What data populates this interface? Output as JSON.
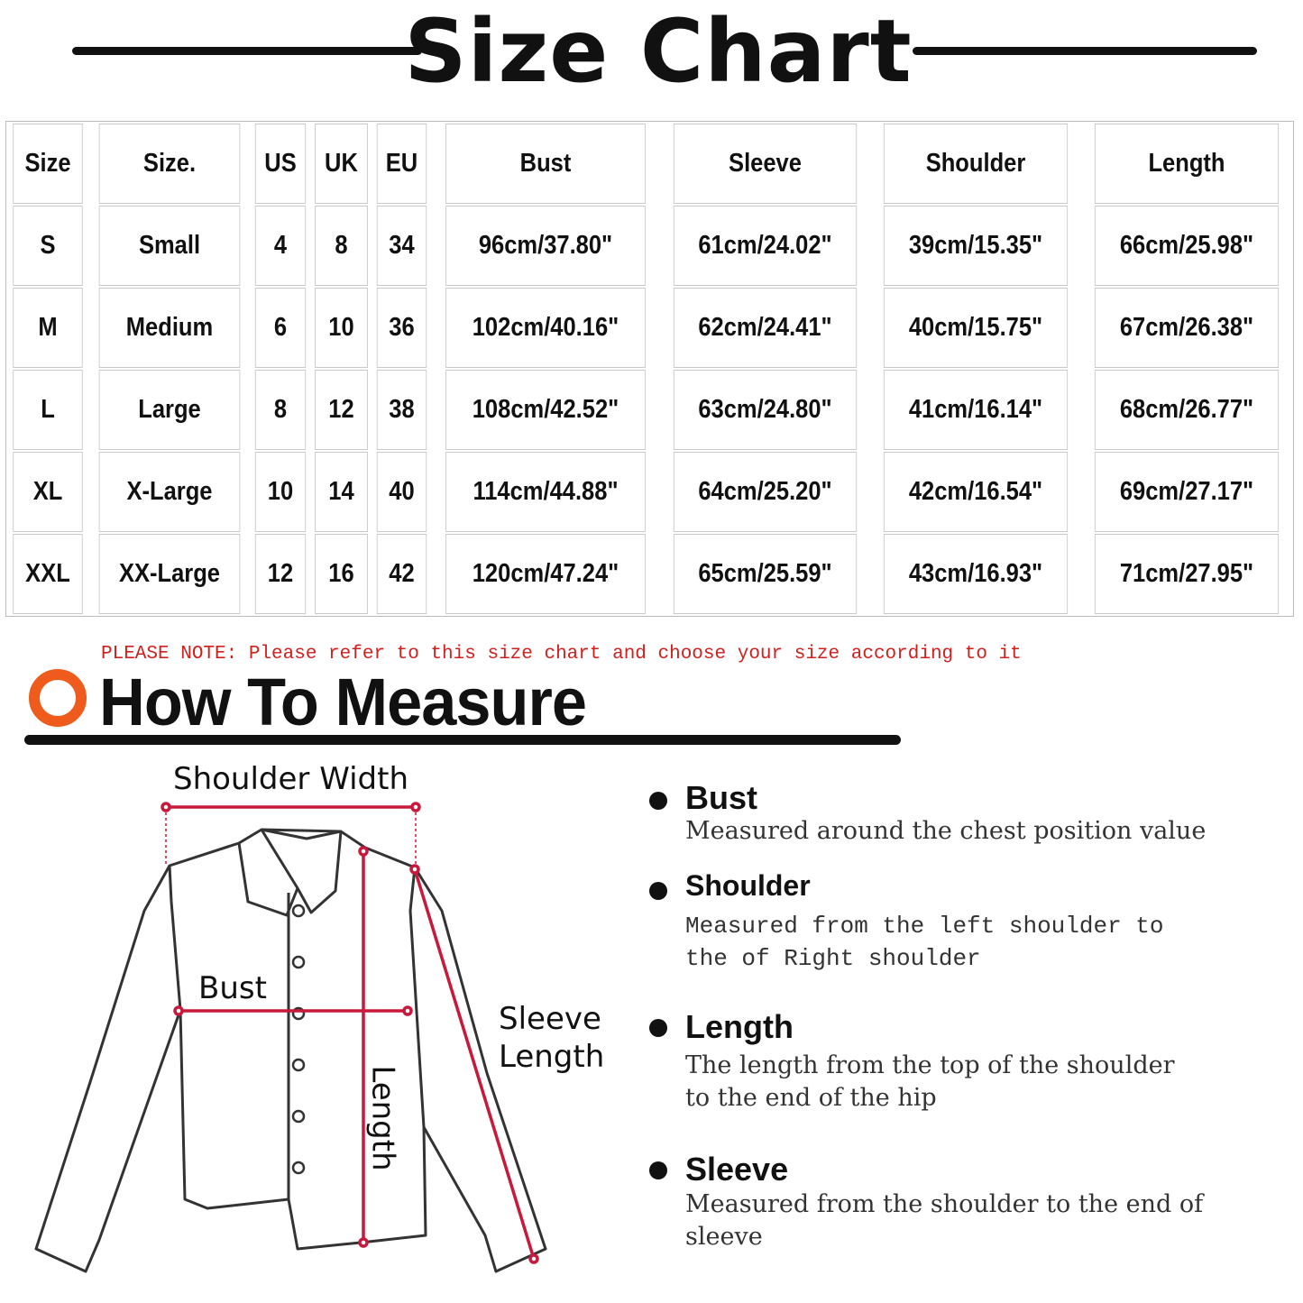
{
  "title": "Size Chart",
  "table": {
    "headers": [
      "Size",
      "Size.",
      "US",
      "UK",
      "EU",
      "Bust",
      "Sleeve",
      "Shoulder",
      "Length"
    ],
    "rows": [
      [
        "S",
        "Small",
        "4",
        "8",
        "34",
        "96cm/37.80\"",
        "61cm/24.02\"",
        "39cm/15.35\"",
        "66cm/25.98\""
      ],
      [
        "M",
        "Medium",
        "6",
        "10",
        "36",
        "102cm/40.16\"",
        "62cm/24.41\"",
        "40cm/15.75\"",
        "67cm/26.38\""
      ],
      [
        "L",
        "Large",
        "8",
        "12",
        "38",
        "108cm/42.52\"",
        "63cm/24.80\"",
        "41cm/16.14\"",
        "68cm/26.77\""
      ],
      [
        "XL",
        "X-Large",
        "10",
        "14",
        "40",
        "114cm/44.88\"",
        "64cm/25.20\"",
        "42cm/16.54\"",
        "69cm/27.17\""
      ],
      [
        "XXL",
        "XX-Large",
        "12",
        "16",
        "42",
        "120cm/47.24\"",
        "65cm/25.59\"",
        "43cm/16.93\"",
        "71cm/27.95\""
      ]
    ]
  },
  "note": "PLEASE NOTE: Please refer to this size chart and choose your size according to it",
  "how_to_measure": "How To Measure",
  "diagram_labels": {
    "shoulder": "Shoulder Width",
    "bust": "Bust",
    "sleeve_1": "Sleeve",
    "sleeve_2": "Length",
    "length": "Length"
  },
  "measures": [
    {
      "title": "Bust",
      "desc": "Measured around the chest position value"
    },
    {
      "title": "Shoulder",
      "desc": "Measured from the left shoulder to the of Right shoulder"
    },
    {
      "title": "Length",
      "desc": "The length from the top of the shoulder to the end of the hip"
    },
    {
      "title": "Sleeve",
      "desc": "Measured from the shoulder to the end of sleeve"
    }
  ],
  "colors": {
    "accent_red": "#d0201e",
    "ring_orange": "#ef5b1c",
    "measure_line": "#c8193c"
  }
}
